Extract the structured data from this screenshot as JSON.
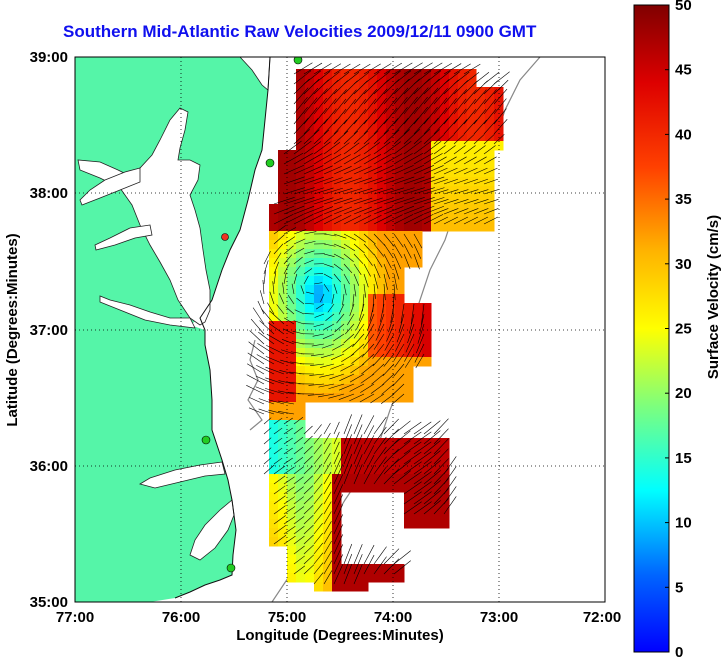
{
  "title": "Southern Mid-Atlantic Raw Velocities 2009/12/11 0900 GMT",
  "x_axis": {
    "label": "Longitude (Degrees:Minutes)",
    "ticks": [
      "77:00",
      "76:00",
      "75:00",
      "74:00",
      "73:00",
      "72:00"
    ]
  },
  "y_axis": {
    "label": "Latitude (Degrees:Minutes)",
    "ticks": [
      "39:00",
      "38:00",
      "37:00",
      "36:00",
      "35:00"
    ]
  },
  "colorbar": {
    "label": "Surface Velocity (cm/s)",
    "min": 0,
    "max": 50,
    "ticks": [
      "0",
      "5",
      "10",
      "15",
      "20",
      "25",
      "30",
      "35",
      "40",
      "45",
      "50"
    ]
  },
  "colors": {
    "land": "#55f5a8",
    "title": "#1010ee",
    "station": "#22cc22",
    "station_alt": "#ee3322",
    "vectors": "#000000"
  },
  "map_extent": {
    "lon": [
      -77,
      -72
    ],
    "lat": [
      35,
      39
    ]
  }
}
